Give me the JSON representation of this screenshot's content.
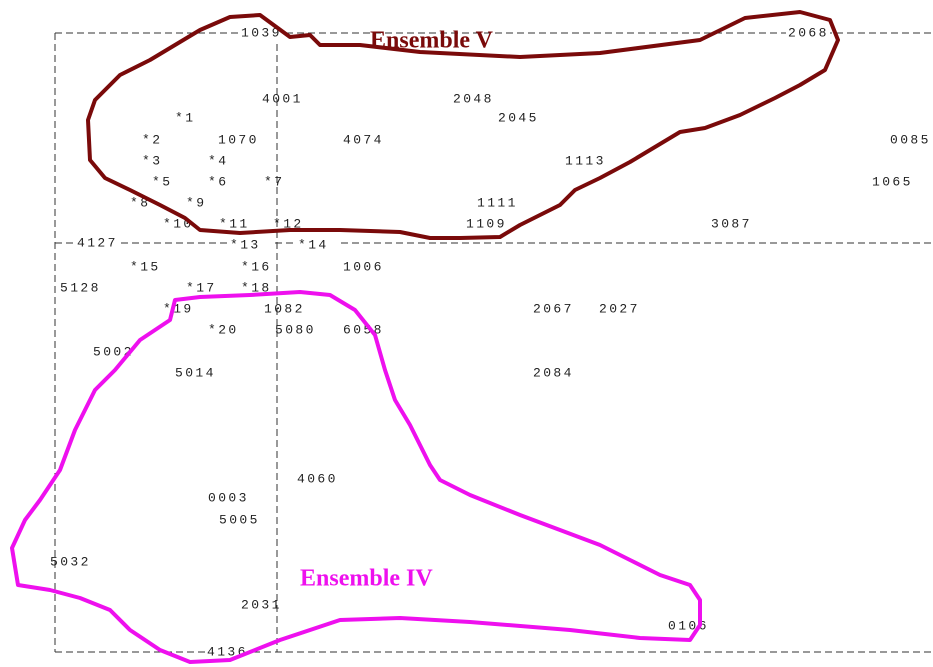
{
  "labels": [
    "1039",
    "2068",
    "4001",
    "2048",
    "*1",
    "2045",
    "*2",
    "1070",
    "4074",
    "0085",
    "*3",
    "*4",
    "1113",
    "*5",
    "*6",
    "*7",
    "1065",
    "*8",
    "*9",
    "1111",
    "*10",
    "*11",
    "*12",
    "1109",
    "3087",
    "4127",
    "*13",
    "*14",
    "*15",
    "*16",
    "1006",
    "5128",
    "*17",
    "*18",
    "*19",
    "1082",
    "2067",
    "2027",
    "*20",
    "5080",
    "6058",
    "5002",
    "5014",
    "2084",
    "4060",
    "0003",
    "5005",
    "5032",
    "2031",
    "0106",
    "4136"
  ],
  "ensembles": [
    {
      "name": "Ensemble V"
    },
    {
      "name": "Ensemble IV"
    }
  ]
}
